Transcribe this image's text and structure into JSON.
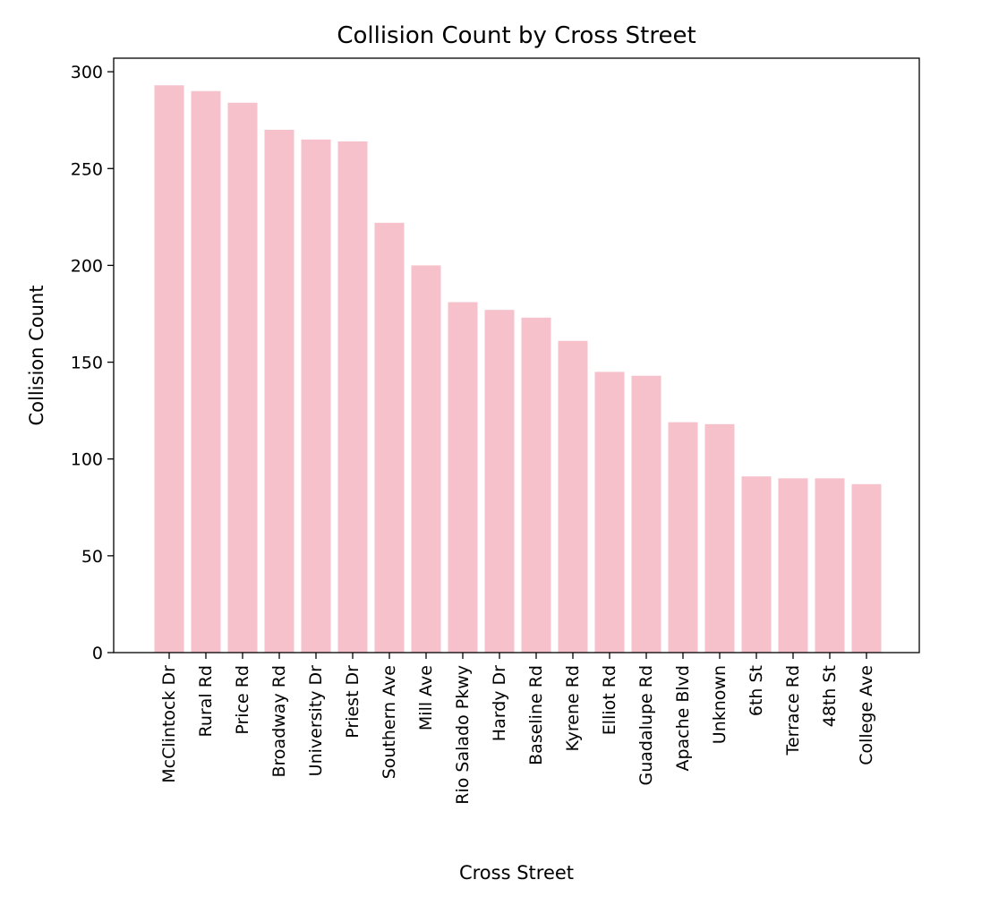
{
  "chart_data": {
    "type": "bar",
    "title": "Collision Count by Cross Street",
    "xlabel": "Cross Street",
    "ylabel": "Collision Count",
    "categories": [
      "McClintock Dr",
      "Rural Rd",
      "Price Rd",
      "Broadway Rd",
      "University Dr",
      "Priest Dr",
      "Southern Ave",
      "Mill Ave",
      "Rio Salado Pkwy",
      "Hardy Dr",
      "Baseline Rd",
      "Kyrene Rd",
      "Elliot Rd",
      "Guadalupe Rd",
      "Apache Blvd",
      "Unknown",
      "6th St",
      "Terrace Rd",
      "48th St",
      "College Ave"
    ],
    "values": [
      293,
      290,
      284,
      270,
      265,
      264,
      222,
      200,
      181,
      177,
      173,
      161,
      145,
      143,
      119,
      118,
      91,
      90,
      90,
      87
    ],
    "ylim": [
      0,
      307
    ],
    "yticks": [
      0,
      50,
      100,
      150,
      200,
      250,
      300
    ],
    "grid": false,
    "bar_color": "#f6c1cb"
  }
}
